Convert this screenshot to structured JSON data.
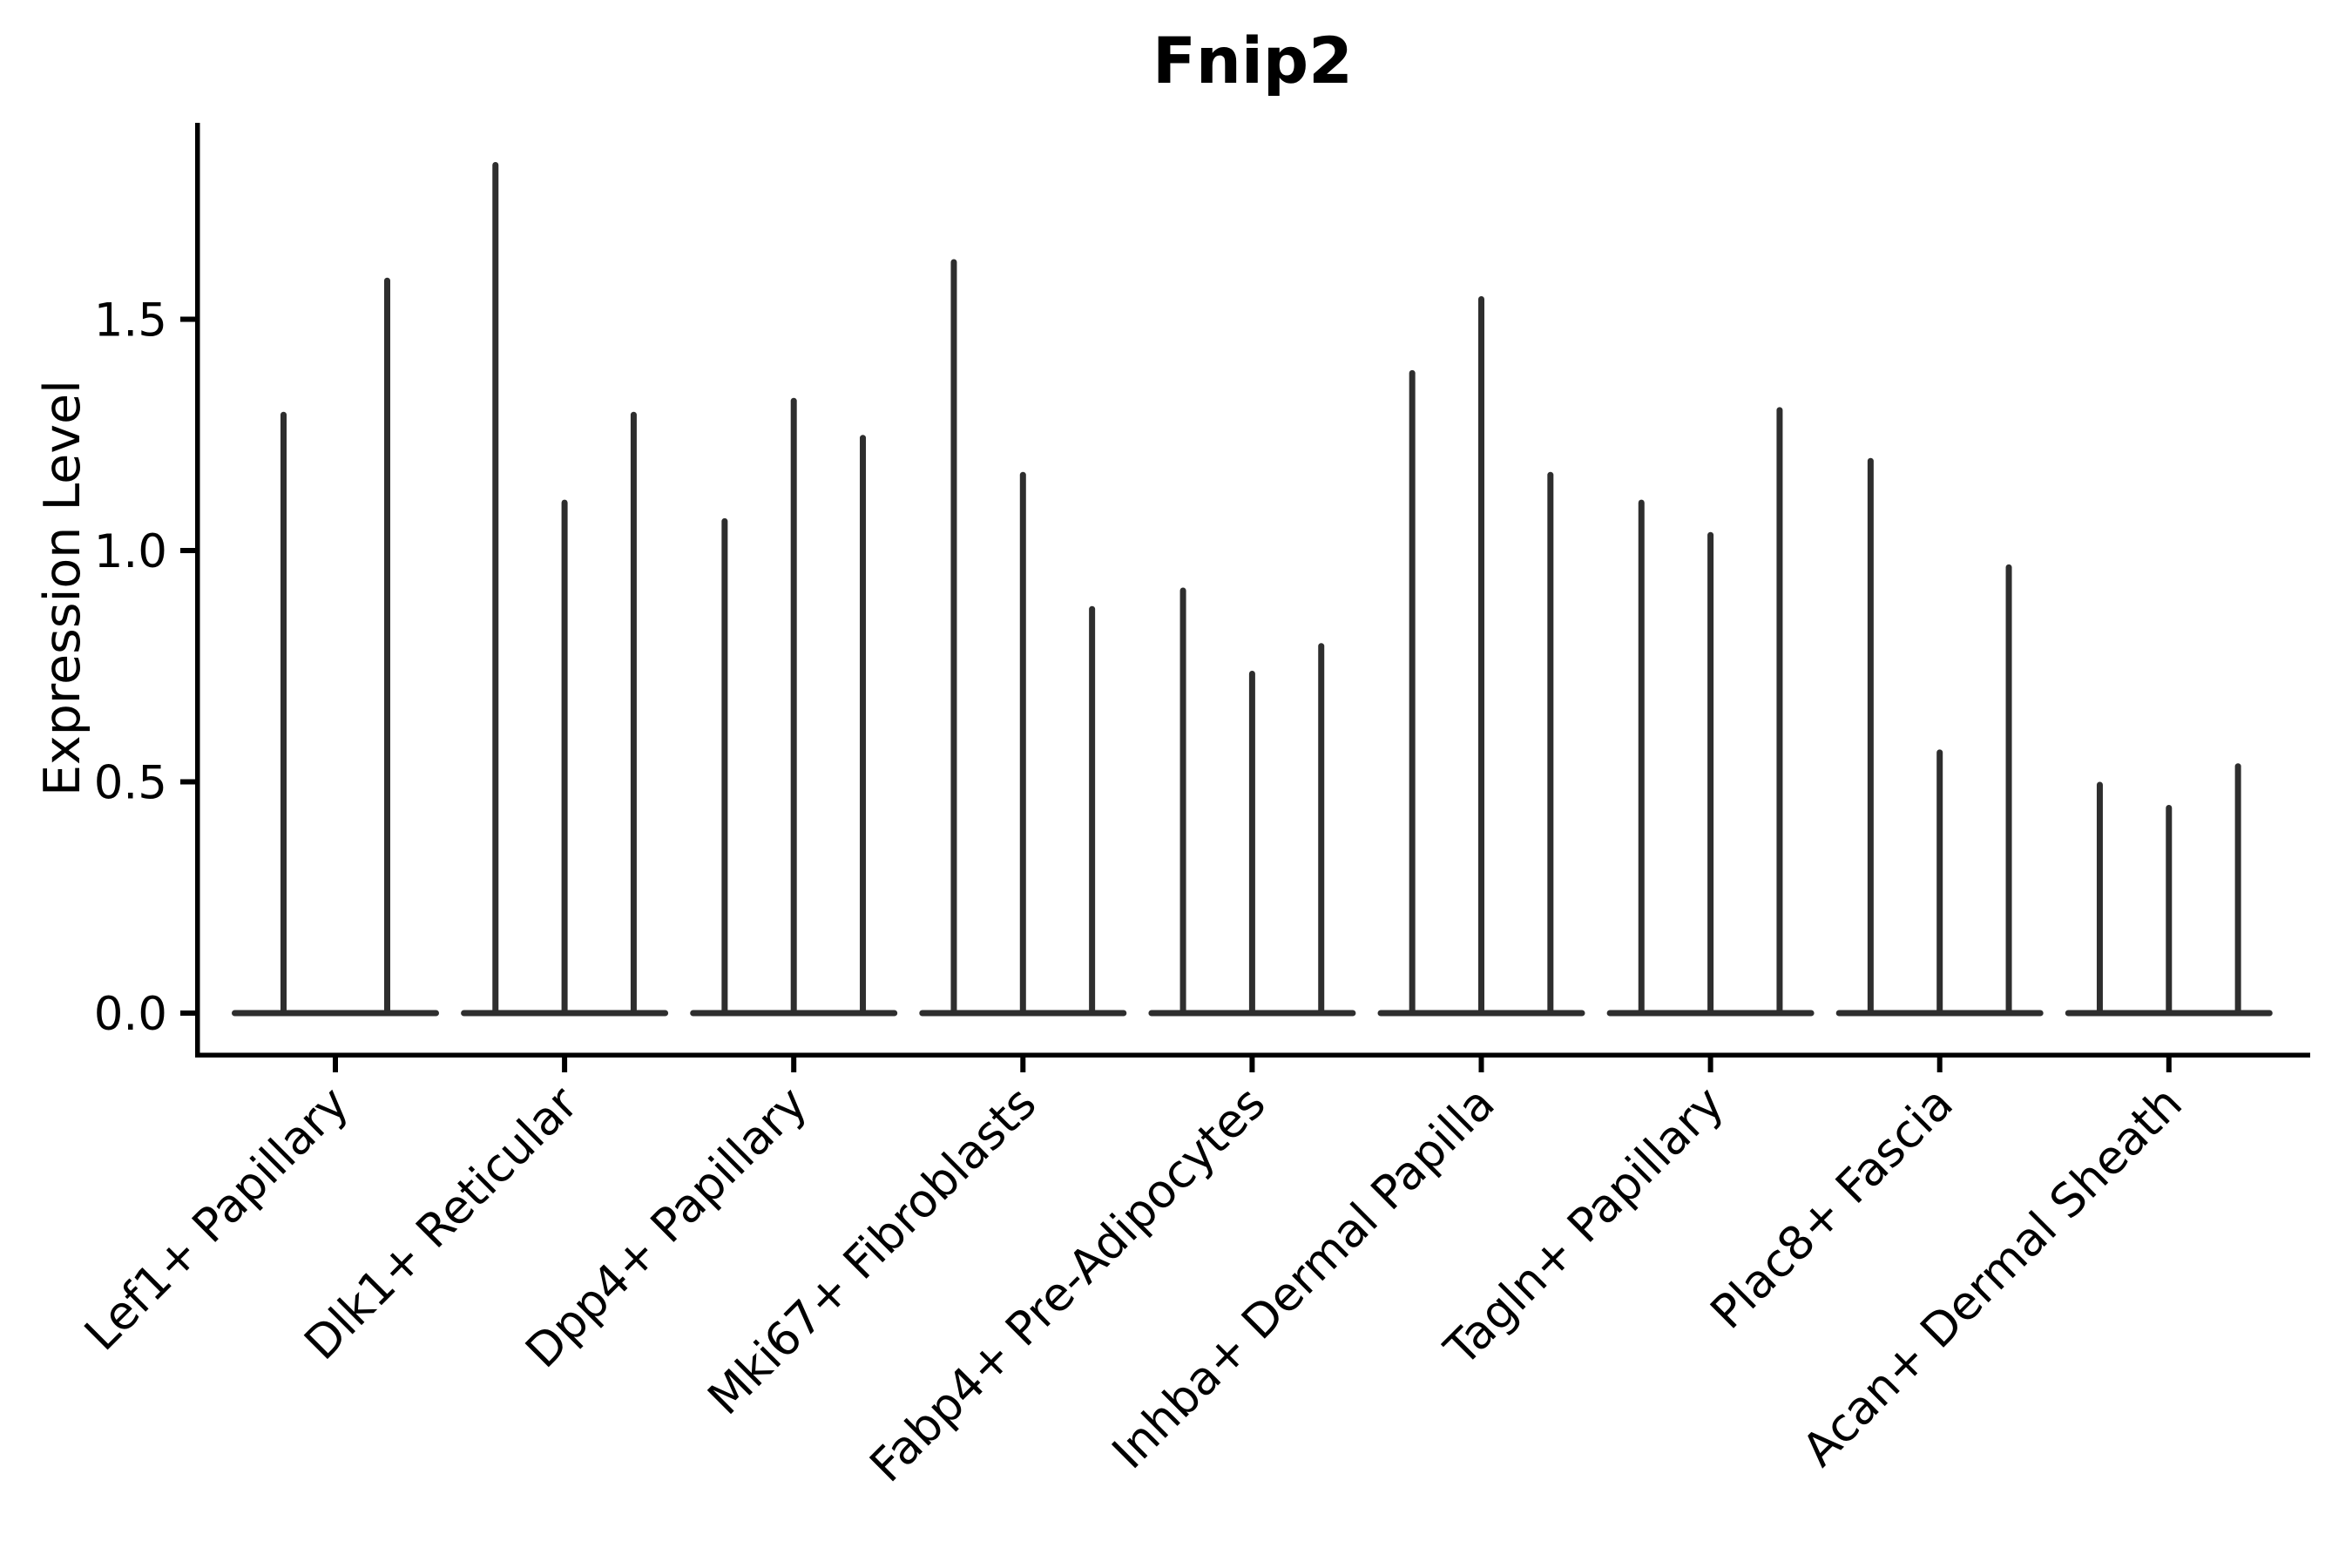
{
  "title": "Fnip2",
  "y_axis": {
    "label": "Expression Level",
    "tick_labels": [
      "0.0",
      "0.5",
      "1.0",
      "1.5"
    ],
    "tick_values": [
      0.0,
      0.5,
      1.0,
      1.5
    ]
  },
  "x_axis": {
    "categories": [
      "Lef1+ Papillary",
      "Dlk1+ Reticular",
      "Dpp4+ Papillary",
      "Mki67+ Fibroblasts",
      "Fabp4+ Pre-Adipocytes",
      "Inhba+ Dermal Papilla",
      "Tagln+ Papillary",
      "Plac8+ Fascia",
      "Acan+ Dermal Sheath"
    ]
  },
  "chart_data": {
    "type": "violin",
    "title": "Fnip2",
    "xlabel": "",
    "ylabel": "Expression Level",
    "ylim": [
      -0.09,
      1.92
    ],
    "yticks": [
      0.0,
      0.5,
      1.0,
      1.5
    ],
    "ytick_labels": [
      "0.0",
      "0.5",
      "1.0",
      "1.5"
    ],
    "grid": false,
    "legend": "none",
    "x_tick_rotation_deg": 45,
    "violin_color": "#2e2e2e",
    "axis_color": "#000000",
    "encoding_note": "Each violin collapses to a flat base at expression 0 with a thin spike; listed values are the spike-top (maximum expression) of each violin in the group.",
    "categories": [
      "Lef1+ Papillary",
      "Dlk1+ Reticular",
      "Dpp4+ Papillary",
      "Mki67+ Fibroblasts",
      "Fabp4+ Pre-Adipocytes",
      "Inhba+ Dermal Papilla",
      "Tagln+ Papillary",
      "Plac8+ Fascia",
      "Acan+ Dermal Sheath"
    ],
    "series": [
      {
        "category": "Lef1+ Papillary",
        "violin_spike_maxima": [
          1.3,
          1.59
        ]
      },
      {
        "category": "Dlk1+ Reticular",
        "violin_spike_maxima": [
          1.84,
          1.11,
          1.3
        ]
      },
      {
        "category": "Dpp4+ Papillary",
        "violin_spike_maxima": [
          1.07,
          1.33,
          1.25
        ]
      },
      {
        "category": "Mki67+ Fibroblasts",
        "violin_spike_maxima": [
          1.63,
          1.17,
          0.88
        ]
      },
      {
        "category": "Fabp4+ Pre-Adipocytes",
        "violin_spike_maxima": [
          0.92,
          0.74,
          0.8
        ]
      },
      {
        "category": "Inhba+ Dermal Papilla",
        "violin_spike_maxima": [
          1.39,
          1.55,
          1.17
        ]
      },
      {
        "category": "Tagln+ Papillary",
        "violin_spike_maxima": [
          1.11,
          1.04,
          1.31
        ]
      },
      {
        "category": "Plac8+ Fascia",
        "violin_spike_maxima": [
          1.2,
          0.57,
          0.97
        ]
      },
      {
        "category": "Acan+ Dermal Sheath",
        "violin_spike_maxima": [
          0.5,
          0.45,
          0.54
        ]
      }
    ]
  }
}
